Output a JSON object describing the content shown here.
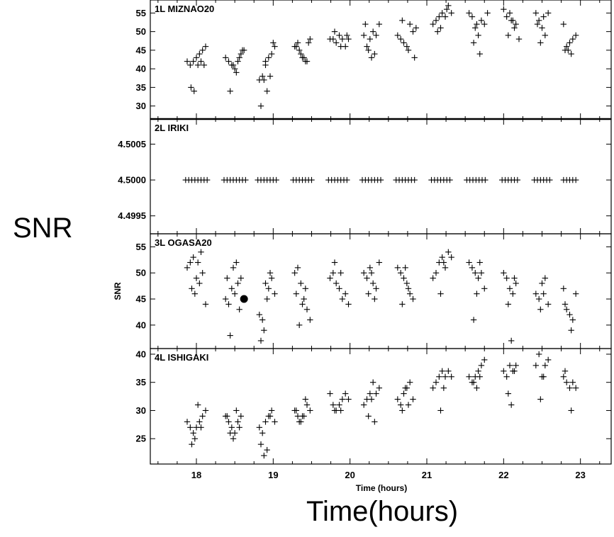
{
  "labels": {
    "big_ylabel": "SNR",
    "big_xlabel": "Time(hours)"
  },
  "chart_data": {
    "type": "scatter",
    "marker": "plus",
    "xlabel": "Time (hours)",
    "xlim": [
      17.4,
      23.4
    ],
    "xticks": [
      18,
      19,
      20,
      21,
      22,
      23
    ],
    "panels": [
      {
        "title": "1L MIZNAO20",
        "ylabel": "",
        "ylim": [
          26.5,
          58.5
        ],
        "yticks": [
          30,
          35,
          40,
          45,
          50,
          55
        ],
        "ytick_labels": [
          "30",
          "35",
          "40",
          "45",
          "50",
          "55"
        ],
        "x": [
          17.88,
          17.92,
          17.96,
          18.0,
          18.04,
          18.08,
          18.12,
          17.93,
          17.97,
          18.06,
          18.1,
          18.02,
          18.38,
          18.42,
          18.46,
          18.5,
          18.54,
          18.58,
          18.62,
          18.44,
          18.52,
          18.6,
          18.48,
          18.56,
          18.82,
          18.86,
          18.9,
          18.94,
          18.98,
          19.02,
          18.84,
          18.88,
          18.92,
          18.96,
          19.0,
          18.9,
          19.28,
          19.32,
          19.36,
          19.4,
          19.44,
          19.48,
          19.34,
          19.38,
          19.42,
          19.3,
          19.46,
          19.74,
          19.78,
          19.82,
          19.86,
          19.9,
          19.94,
          19.98,
          19.8,
          19.88,
          19.96,
          20.18,
          20.22,
          20.26,
          20.3,
          20.34,
          20.38,
          20.24,
          20.32,
          20.28,
          20.2,
          20.62,
          20.66,
          20.7,
          20.74,
          20.78,
          20.82,
          20.86,
          20.68,
          20.76,
          20.84,
          21.08,
          21.12,
          21.16,
          21.2,
          21.24,
          21.28,
          21.32,
          21.18,
          21.26,
          21.14,
          21.55,
          21.59,
          21.63,
          21.67,
          21.71,
          21.75,
          21.79,
          21.61,
          21.69,
          21.65,
          22.0,
          22.04,
          22.08,
          22.12,
          22.16,
          22.2,
          22.06,
          22.14,
          22.1,
          22.42,
          22.46,
          22.5,
          22.54,
          22.58,
          22.48,
          22.52,
          22.44,
          22.78,
          22.82,
          22.86,
          22.9,
          22.94,
          22.8,
          22.88,
          22.84
        ],
        "y": [
          42,
          41,
          42,
          43,
          44,
          45,
          46,
          35,
          34,
          42,
          41,
          41,
          43,
          42,
          41,
          40,
          42,
          44,
          45,
          34,
          39,
          45,
          41,
          43,
          37,
          38,
          42,
          43,
          44,
          46,
          30,
          37,
          34,
          38,
          47,
          41,
          46,
          47,
          44,
          43,
          42,
          48,
          45,
          43,
          42,
          46,
          47,
          48,
          48,
          47,
          49,
          48,
          46,
          48,
          50,
          46,
          49,
          49,
          46,
          48,
          50,
          49,
          52,
          45,
          44,
          43,
          52,
          49,
          48,
          47,
          46,
          52,
          50,
          51,
          53,
          45,
          43,
          52,
          53,
          54,
          55,
          54,
          57,
          55,
          51,
          56,
          50,
          55,
          54,
          51,
          49,
          53,
          52,
          55,
          47,
          44,
          52,
          56,
          54,
          55,
          53,
          52,
          48,
          49,
          51,
          53,
          55,
          53,
          51,
          49,
          55,
          47,
          54,
          52,
          52,
          46,
          47,
          48,
          49,
          45,
          44,
          45
        ]
      },
      {
        "title": "2L IRIKI",
        "ylabel": "",
        "ylim": [
          4.49925,
          4.50085
        ],
        "yticks": [
          4.4995,
          4.5,
          4.5005
        ],
        "ytick_labels": [
          "4.4995",
          "4.5000",
          "4.5005"
        ],
        "x": [
          17.86,
          17.9,
          17.94,
          17.98,
          18.02,
          18.06,
          18.1,
          18.14,
          18.36,
          18.4,
          18.44,
          18.48,
          18.52,
          18.56,
          18.6,
          18.64,
          18.8,
          18.84,
          18.88,
          18.92,
          18.96,
          19.0,
          19.04,
          19.26,
          19.3,
          19.34,
          19.38,
          19.42,
          19.46,
          19.5,
          19.72,
          19.76,
          19.8,
          19.84,
          19.88,
          19.92,
          19.96,
          20.16,
          20.2,
          20.24,
          20.28,
          20.32,
          20.36,
          20.4,
          20.6,
          20.64,
          20.68,
          20.72,
          20.76,
          20.8,
          20.84,
          21.06,
          21.1,
          21.14,
          21.18,
          21.22,
          21.26,
          21.3,
          21.52,
          21.56,
          21.6,
          21.64,
          21.68,
          21.72,
          21.76,
          21.98,
          22.02,
          22.06,
          22.1,
          22.14,
          22.18,
          22.4,
          22.44,
          22.48,
          22.52,
          22.56,
          22.6,
          22.78,
          22.82,
          22.86,
          22.9,
          22.94
        ],
        "y": [
          4.5,
          4.5,
          4.5,
          4.5,
          4.5,
          4.5,
          4.5,
          4.5,
          4.5,
          4.5,
          4.5,
          4.5,
          4.5,
          4.5,
          4.5,
          4.5,
          4.5,
          4.5,
          4.5,
          4.5,
          4.5,
          4.5,
          4.5,
          4.5,
          4.5,
          4.5,
          4.5,
          4.5,
          4.5,
          4.5,
          4.5,
          4.5,
          4.5,
          4.5,
          4.5,
          4.5,
          4.5,
          4.5,
          4.5,
          4.5,
          4.5,
          4.5,
          4.5,
          4.5,
          4.5,
          4.5,
          4.5,
          4.5,
          4.5,
          4.5,
          4.5,
          4.5,
          4.5,
          4.5,
          4.5,
          4.5,
          4.5,
          4.5,
          4.5,
          4.5,
          4.5,
          4.5,
          4.5,
          4.5,
          4.5,
          4.5,
          4.5,
          4.5,
          4.5,
          4.5,
          4.5,
          4.5,
          4.5,
          4.5,
          4.5,
          4.5,
          4.5,
          4.5,
          4.5,
          4.5,
          4.5,
          4.5
        ]
      },
      {
        "title": "3L OGASA20",
        "ylabel": "SNR",
        "ylim": [
          35.5,
          57.5
        ],
        "yticks": [
          40,
          45,
          50,
          55
        ],
        "ytick_labels": [
          "40",
          "45",
          "50",
          "55"
        ],
        "x": [
          17.88,
          17.92,
          17.96,
          18.0,
          18.04,
          18.08,
          18.12,
          17.94,
          17.98,
          18.06,
          18.02,
          18.38,
          18.42,
          18.46,
          18.5,
          18.54,
          18.58,
          18.44,
          18.52,
          18.48,
          18.56,
          18.4,
          18.82,
          18.86,
          18.9,
          18.94,
          18.98,
          19.02,
          18.84,
          18.88,
          18.92,
          18.96,
          19.28,
          19.32,
          19.36,
          19.4,
          19.44,
          19.48,
          19.34,
          19.38,
          19.42,
          19.3,
          19.74,
          19.78,
          19.82,
          19.86,
          19.9,
          19.94,
          19.98,
          19.8,
          19.88,
          20.18,
          20.22,
          20.26,
          20.3,
          20.34,
          20.38,
          20.24,
          20.32,
          20.28,
          20.62,
          20.66,
          20.7,
          20.74,
          20.78,
          20.82,
          20.68,
          20.76,
          20.72,
          21.08,
          21.12,
          21.16,
          21.2,
          21.24,
          21.28,
          21.32,
          21.18,
          21.22,
          21.55,
          21.59,
          21.63,
          21.67,
          21.71,
          21.75,
          21.61,
          21.65,
          21.69,
          22.0,
          22.04,
          22.08,
          22.12,
          22.16,
          22.06,
          22.1,
          22.14,
          22.42,
          22.46,
          22.5,
          22.54,
          22.58,
          22.48,
          22.52,
          22.78,
          22.82,
          22.86,
          22.9,
          22.94,
          22.8,
          22.88
        ],
        "y": [
          51,
          52,
          53,
          49,
          48,
          50,
          44,
          47,
          46,
          54,
          52,
          45,
          44,
          47,
          46,
          48,
          49,
          38,
          52,
          51,
          43,
          49,
          42,
          41,
          48,
          47,
          49,
          46,
          37,
          39,
          45,
          50,
          50,
          51,
          48,
          45,
          43,
          41,
          40,
          44,
          47,
          46,
          49,
          50,
          48,
          47,
          45,
          46,
          44,
          52,
          50,
          50,
          49,
          51,
          48,
          47,
          52,
          46,
          45,
          50,
          51,
          50,
          49,
          48,
          46,
          45,
          44,
          47,
          51,
          49,
          50,
          52,
          53,
          51,
          54,
          53,
          46,
          52,
          52,
          51,
          50,
          49,
          50,
          47,
          41,
          46,
          52,
          50,
          49,
          47,
          46,
          48,
          44,
          37,
          49,
          46,
          45,
          48,
          49,
          44,
          43,
          46,
          47,
          43,
          42,
          41,
          46,
          44,
          39
        ]
      },
      {
        "title": "4L ISHIGAKI",
        "ylabel": "",
        "ylim": [
          20.5,
          41.0
        ],
        "yticks": [
          25,
          30,
          35,
          40
        ],
        "ytick_labels": [
          "25",
          "30",
          "35",
          "40"
        ],
        "x": [
          17.88,
          17.92,
          17.96,
          18.0,
          18.04,
          18.08,
          18.12,
          17.94,
          17.98,
          18.02,
          18.06,
          18.38,
          18.42,
          18.46,
          18.5,
          18.54,
          18.58,
          18.44,
          18.52,
          18.48,
          18.56,
          18.4,
          18.82,
          18.86,
          18.9,
          18.94,
          18.98,
          19.02,
          18.84,
          18.88,
          18.92,
          18.96,
          19.28,
          19.32,
          19.36,
          19.4,
          19.44,
          19.48,
          19.34,
          19.38,
          19.42,
          19.3,
          19.74,
          19.78,
          19.82,
          19.86,
          19.9,
          19.94,
          19.98,
          19.8,
          19.88,
          20.18,
          20.22,
          20.26,
          20.3,
          20.34,
          20.38,
          20.24,
          20.32,
          20.28,
          20.62,
          20.66,
          20.7,
          20.74,
          20.78,
          20.82,
          20.68,
          20.76,
          20.72,
          21.08,
          21.12,
          21.16,
          21.2,
          21.24,
          21.28,
          21.32,
          21.18,
          21.22,
          21.55,
          21.59,
          21.63,
          21.67,
          21.71,
          21.75,
          21.61,
          21.65,
          21.69,
          22.0,
          22.04,
          22.08,
          22.12,
          22.16,
          22.06,
          22.1,
          22.14,
          22.42,
          22.46,
          22.5,
          22.54,
          22.58,
          22.48,
          22.52,
          22.78,
          22.82,
          22.86,
          22.9,
          22.94,
          22.8,
          22.88
        ],
        "y": [
          28,
          27,
          26,
          27,
          28,
          29,
          30,
          24,
          25,
          31,
          27,
          29,
          28,
          27,
          26,
          28,
          29,
          26,
          30,
          25,
          27,
          29,
          27,
          26,
          28,
          29,
          30,
          28,
          24,
          22,
          23,
          29,
          30,
          29,
          28,
          29,
          31,
          30,
          28,
          29,
          32,
          30,
          33,
          31,
          30,
          31,
          32,
          33,
          32,
          30,
          30,
          31,
          32,
          33,
          35,
          33,
          34,
          29,
          28,
          32,
          32,
          31,
          33,
          34,
          35,
          32,
          30,
          31,
          34,
          34,
          35,
          36,
          37,
          36,
          37,
          36,
          30,
          34,
          36,
          35,
          36,
          37,
          38,
          39,
          35,
          34,
          36,
          37,
          36,
          38,
          37,
          38,
          33,
          31,
          37,
          38,
          40,
          36,
          38,
          39,
          32,
          36,
          36,
          35,
          34,
          35,
          34,
          37,
          30
        ]
      }
    ],
    "highlight_point": {
      "panel": 2,
      "x": 18.62,
      "y": 45.0
    }
  }
}
